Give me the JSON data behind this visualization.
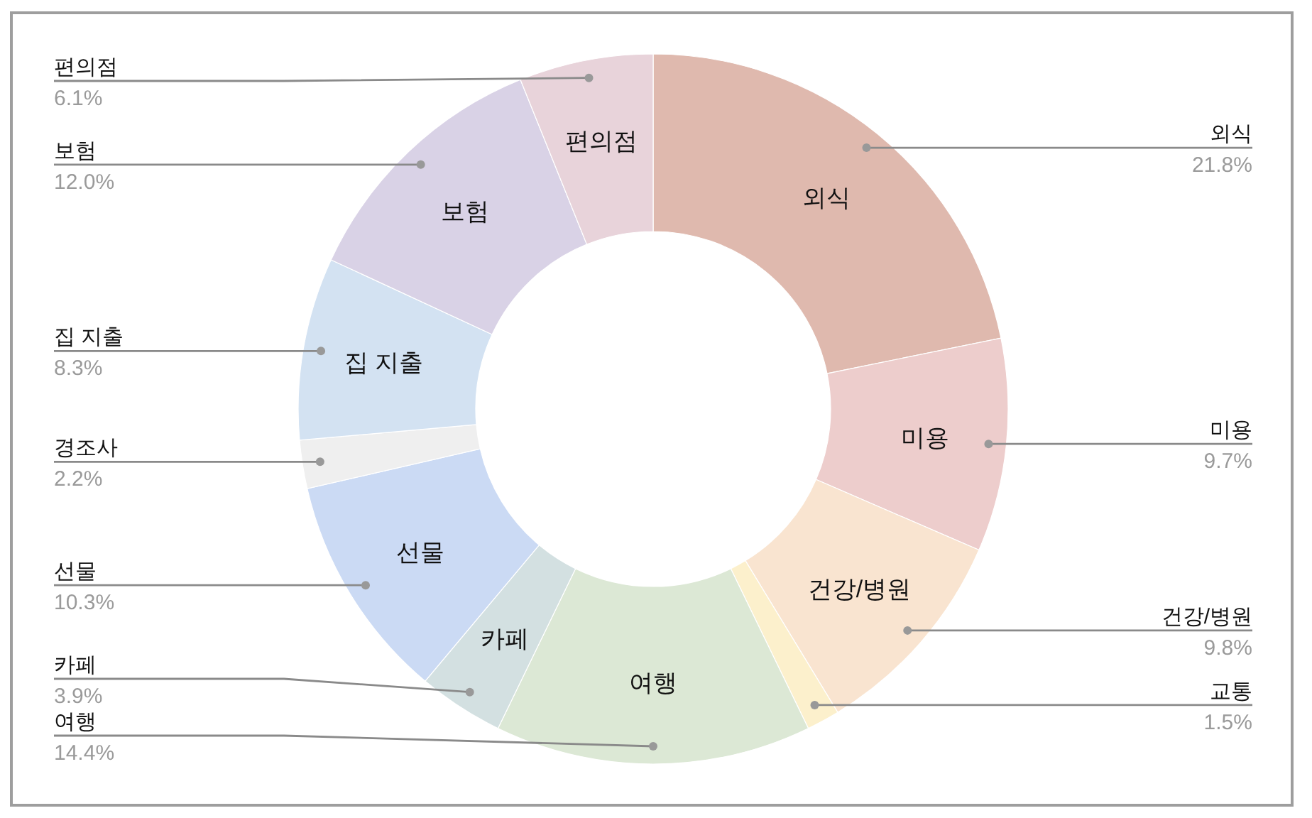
{
  "chart_data": {
    "type": "donut",
    "categories": [
      "외식",
      "미용",
      "건강/병원",
      "교통",
      "여행",
      "카페",
      "선물",
      "경조사",
      "집 지출",
      "보험",
      "편의점"
    ],
    "values": [
      21.8,
      9.7,
      9.8,
      1.5,
      14.4,
      3.9,
      10.3,
      2.2,
      8.3,
      12.0,
      6.1
    ],
    "colors": [
      "#dfb9ae",
      "#edcdcc",
      "#f9e4d0",
      "#fcf0cc",
      "#dce8d5",
      "#d3e0e1",
      "#cbdaf4",
      "#efefef",
      "#d3e2f2",
      "#d9d2e6",
      "#e8d3da"
    ],
    "value_labels": [
      "21.8%",
      "9.7%",
      "9.8%",
      "1.5%",
      "14.4%",
      "3.9%",
      "10.3%",
      "2.2%",
      "8.3%",
      "12.0%",
      "6.1%"
    ]
  }
}
